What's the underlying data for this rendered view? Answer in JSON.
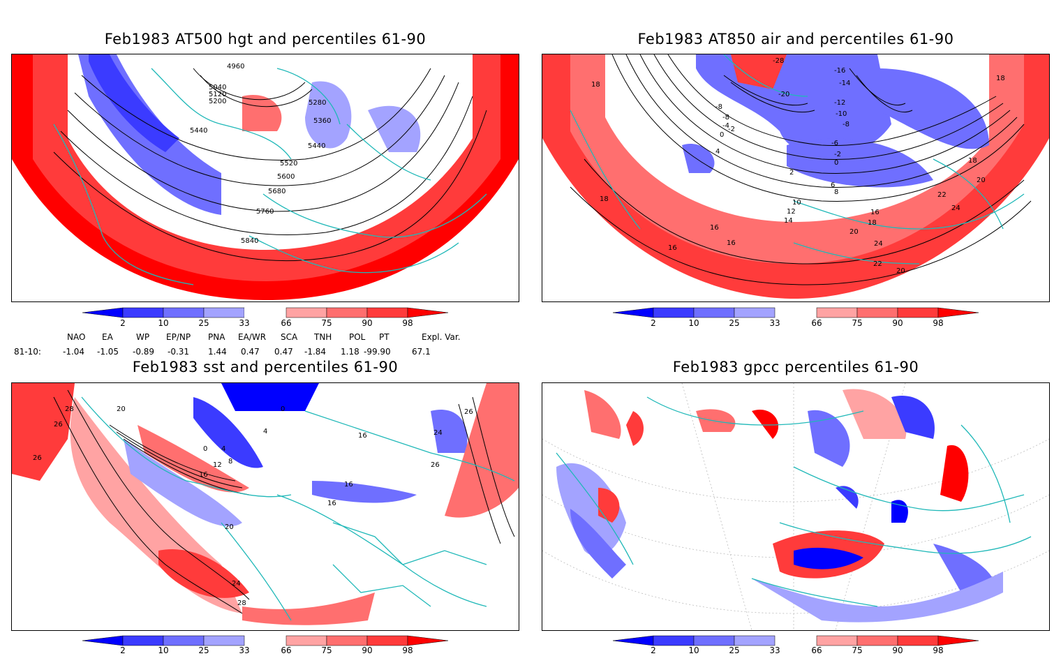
{
  "panels": [
    {
      "id": "p1",
      "title": "Feb1983 AT500 hgt and percentiles 61-90",
      "contour_labels": [
        "4960",
        "5040",
        "5120",
        "5200",
        "5280",
        "5360",
        "5440",
        "5440",
        "5520",
        "5600",
        "5680",
        "5760",
        "5840"
      ]
    },
    {
      "id": "p2",
      "title": "Feb1983 AT850 air and percentiles 61-90",
      "contour_labels": [
        "-28",
        "-16",
        "-14",
        "-12",
        "-10",
        "-8",
        "-8",
        "-8",
        "-6",
        "-4",
        "-2",
        "0",
        "0",
        "2",
        "4",
        "6",
        "8",
        "10",
        "12",
        "14",
        "16",
        "16",
        "16",
        "18",
        "18",
        "18",
        "18",
        "18",
        "20",
        "20",
        "20",
        "22",
        "22",
        "24",
        "24",
        "-20",
        "-2",
        "16"
      ]
    },
    {
      "id": "p3",
      "title": "Feb1983 sst and percentiles 61-90",
      "contour_labels": [
        "28",
        "26",
        "26",
        "20",
        "0",
        "4",
        "8",
        "12",
        "16",
        "16",
        "16",
        "20",
        "24",
        "26",
        "28",
        "16",
        "0",
        "4",
        "24",
        "26"
      ]
    },
    {
      "id": "p4",
      "title": "Feb1983 gpcc percentiles 61-90",
      "contour_labels": []
    }
  ],
  "colorbar": {
    "labels": [
      "2",
      "10",
      "25",
      "33",
      "66",
      "75",
      "90",
      "98"
    ],
    "colors": {
      "below2": "#0000ff",
      "b2_10": "#3b3bff",
      "b10_25": "#6f6fff",
      "b25_33": "#a3a3ff",
      "a66_75": "#ffa3a3",
      "a75_90": "#ff6f6f",
      "a90_98": "#ff3b3b",
      "above98": "#ff0000"
    }
  },
  "indices": {
    "row_label": "81-10:",
    "headers": [
      "NAO",
      "EA",
      "WP",
      "EP/NP",
      "PNA",
      "EA/WR",
      "SCA",
      "TNH",
      "POL",
      "PT",
      "Expl. Var."
    ],
    "values": [
      "-1.04",
      "-1.05",
      "-0.89",
      "-0.31",
      "1.44",
      "0.47",
      "0.47",
      "-1.84",
      "1.18",
      "-99.90",
      "67.1"
    ]
  },
  "colors": {
    "coastline": "#1fb8b8",
    "contour": "#000000",
    "grid": "#999999"
  }
}
